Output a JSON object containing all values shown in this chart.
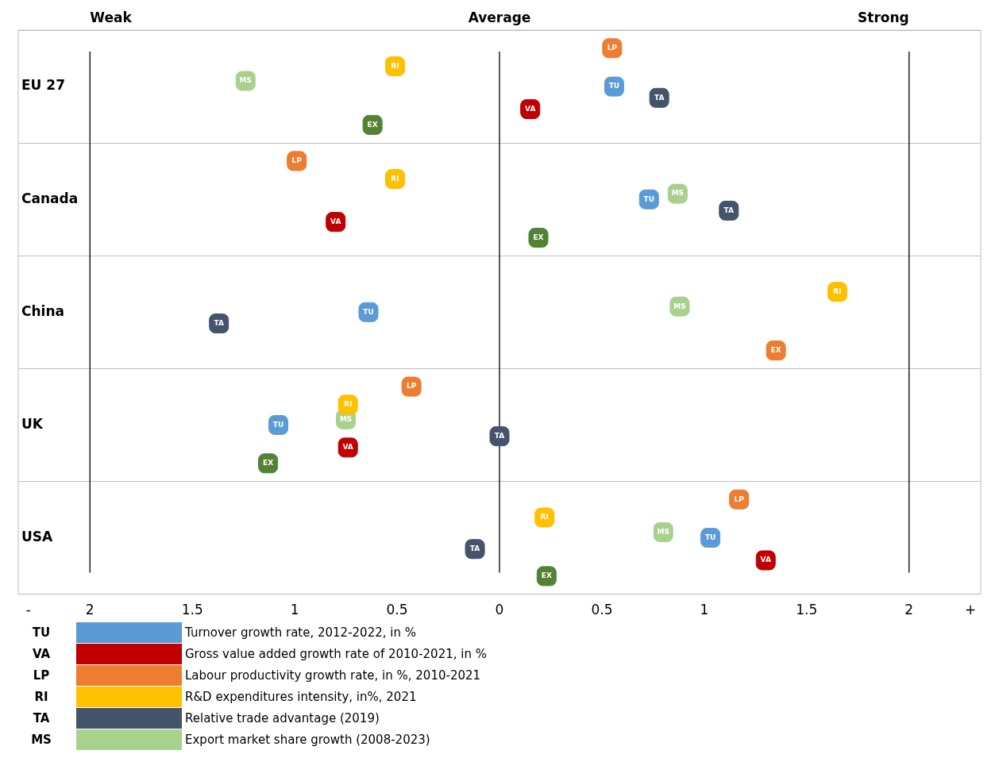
{
  "chart_data": {
    "type": "scatter",
    "orientation": "horizontal",
    "categories": [
      "EU 27",
      "Canada",
      "China",
      "UK",
      "USA"
    ],
    "series": [
      {
        "name": "TU",
        "color": "#5b9bd5",
        "values": [
          0.56,
          0.73,
          -0.64,
          -1.08,
          1.03
        ]
      },
      {
        "name": "VA",
        "color": "#c00000",
        "values": [
          0.15,
          -0.8,
          null,
          -0.74,
          1.3
        ]
      },
      {
        "name": "LP",
        "color": "#ed7d31",
        "values": [
          0.55,
          -0.99,
          null,
          -0.43,
          1.17
        ]
      },
      {
        "name": "RI",
        "color": "#ffc000",
        "values": [
          -0.51,
          -0.51,
          1.65,
          -0.74,
          0.22
        ]
      },
      {
        "name": "TA",
        "color": "#44546a",
        "values": [
          0.78,
          1.12,
          -1.37,
          0,
          -0.12
        ]
      },
      {
        "name": "MS",
        "color": "#a9d18e",
        "values": [
          -1.24,
          0.87,
          0.88,
          -0.75,
          0.8
        ]
      },
      {
        "name": "EX",
        "colors": [
          "#548235",
          "#548235",
          "#ed7d31",
          "#548235",
          "#548235"
        ],
        "values": [
          -0.62,
          0.19,
          1.35,
          -1.13,
          0.23
        ]
      }
    ],
    "xlim": [
      -2.35,
      2.35
    ],
    "xticks": [
      {
        "value": -2.3,
        "label": "-"
      },
      {
        "value": -2,
        "label": "2"
      },
      {
        "value": -1.5,
        "label": "1.5"
      },
      {
        "value": -1,
        "label": "1"
      },
      {
        "value": -0.5,
        "label": "0.5"
      },
      0,
      0.5,
      1,
      1.5,
      2,
      {
        "value": 2.3,
        "label": "+"
      }
    ],
    "ref_lines": [
      {
        "axis": "x",
        "value": -2,
        "color": "#000000"
      },
      {
        "axis": "x",
        "value": 0,
        "color": "#000000"
      },
      {
        "axis": "x",
        "value": 2,
        "color": "#000000"
      }
    ],
    "grid": "y",
    "marker": "square",
    "legend": "bottom",
    "annotations": [
      "Turnover growth rate, 2012-2022, in %",
      "Gross value added growth rate of 2010-2021, in %",
      "Labour productivity growth rate, in %, 2010-2021",
      "R&D expenditures intensity, in%, 2021",
      "Relative trade advantage (2019)",
      "Export market share growth (2008-2023)",
      "Weak",
      "Average",
      "Strong"
    ]
  }
}
